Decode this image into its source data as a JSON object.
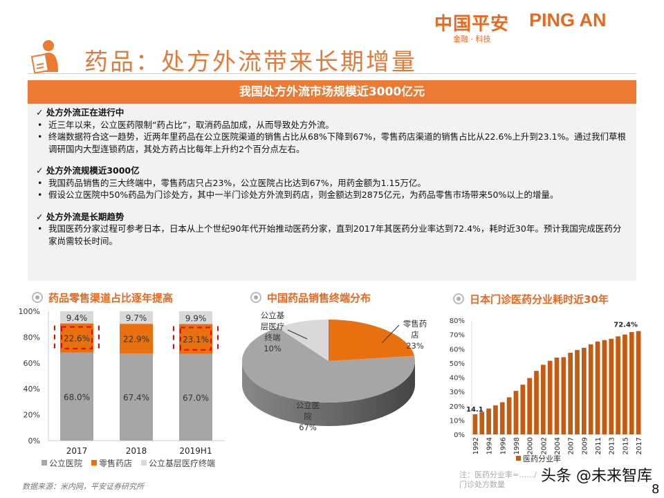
{
  "logo": {
    "cn": "中国平安",
    "en": "PING AN",
    "sub": "金融 · 科技"
  },
  "title": "药品：处方外流带来长期增量",
  "banner": "我国处方外流市场规模近3000亿元",
  "sections": [
    {
      "heading": "✓ 处方外流正在进行中",
      "bullets": [
        "近三年以来，公立医药限制“药占比”，取消药品加成，从而导致处方外流。",
        "终端数据符合这一趋势，近两年里药品在公立医院渠道的销售占比从68%下降到67%，零售药店渠道的销售占比从22.6%上升到23.1%。通过我们草根调研国内大型连锁药店，其处方药占比每年上升约2个百分点左右。"
      ]
    },
    {
      "heading": "✓ 处方外流规模近3000亿",
      "bullets": [
        "我国药品销售的三大终端中，零售药店只占23%，公立医院占比达到67%，用药金额为1.15万亿。",
        "假设公立医院中50%药品为门诊处方，其中一半门诊处方外流到药店，则金额达到2875亿元，为药品零售市场带来50%以上的增量。"
      ]
    },
    {
      "heading": "✓ 处方外流是长期趋势",
      "bullets": [
        "我国医药分家过程可参考日本，日本从上个世纪90年代开始推动医药分家，直到2017年其医药分业率达到72.4%，耗时近30年。预计我国完成医药分家尚需较长时间。"
      ]
    }
  ],
  "chart_data": [
    {
      "type": "bar",
      "stacked": true,
      "title": "药品零售渠道占比逐年提高",
      "categories": [
        "2017",
        "2018",
        "2019H1"
      ],
      "series": [
        {
          "name": "公立医院",
          "values": [
            68.0,
            67.4,
            67.0
          ],
          "color": "#a6a6a6"
        },
        {
          "name": "零售药店",
          "values": [
            22.6,
            22.9,
            23.1
          ],
          "color": "#e8700f"
        },
        {
          "name": "公立基层医疗终端",
          "values": [
            9.4,
            9.7,
            9.9
          ],
          "color": "#d9d9d9"
        }
      ],
      "data_labels": [
        [
          "68.0%",
          "67.4%",
          "67.0%"
        ],
        [
          "22.6%",
          "22.9%",
          "23.1%"
        ],
        [
          "9.4%",
          "9.7%",
          "9.9%"
        ]
      ],
      "yticks": [
        "0%",
        "20%",
        "40%",
        "60%",
        "80%",
        "100%"
      ],
      "ylim": [
        0,
        100
      ],
      "legend": "bottom",
      "highlighted": [
        "2017",
        "2019H1"
      ]
    },
    {
      "type": "pie",
      "title": "中国药品销售终端分布",
      "slices": [
        {
          "label": "零售药店",
          "value": 23,
          "text": "23%",
          "color": "#e8700f"
        },
        {
          "label": "公立医院",
          "value": 67,
          "text": "67%",
          "color": "#a6a6a6"
        },
        {
          "label": "公立基层医疗终端",
          "value": 10,
          "text": "10%",
          "color": "#d9d9d9"
        }
      ]
    },
    {
      "type": "bar",
      "title": "日本门诊医药分业耗时近30年",
      "x": [
        "1992",
        "1993",
        "1994",
        "1995",
        "1996",
        "1997",
        "1998",
        "1999",
        "2000",
        "2001",
        "2002",
        "2003",
        "2004",
        "2005",
        "2007",
        "2008",
        "2009",
        "2010",
        "2011",
        "2012",
        "2013",
        "2014",
        "2015",
        "2016",
        "2017"
      ],
      "xticks": [
        "1992",
        "1994",
        "1996",
        "1998",
        "2000",
        "2002",
        "2004",
        "2007",
        "2009",
        "2011",
        "2013",
        "2015",
        "2017"
      ],
      "series": [
        {
          "name": "医药分业率",
          "values": [
            14.1,
            15.8,
            18.1,
            20.3,
            22.5,
            26.0,
            30.5,
            34.8,
            39.5,
            44.5,
            48.8,
            51.6,
            53.8,
            54.1,
            57.2,
            59.1,
            60.7,
            63.1,
            65.1,
            66.1,
            67.0,
            68.7,
            70.0,
            71.7,
            72.4
          ],
          "color": "#c55a11"
        }
      ],
      "annotations": [
        "14.1",
        "72.4%"
      ],
      "yticks": [
        "0%",
        "10%",
        "20%",
        "30%",
        "40%",
        "50%",
        "60%",
        "70%",
        "80%"
      ],
      "ylim": [
        0,
        80
      ],
      "legend": "bottom",
      "note": "注：医药分业率=……/门诊处方数量"
    }
  ],
  "source": "数据来源：米内网，平安证券研究所",
  "watermark": "头条 @未来智库",
  "page_number": "8"
}
